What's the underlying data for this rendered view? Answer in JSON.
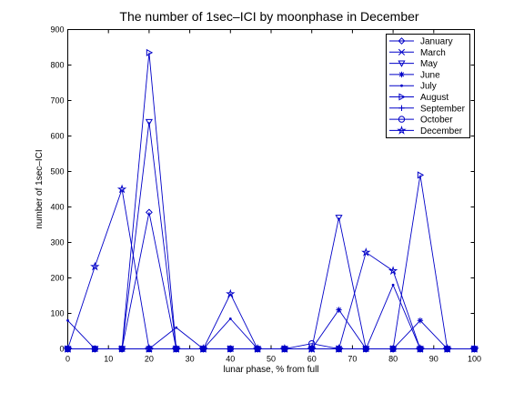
{
  "chart_data": {
    "type": "line",
    "title": "The number of 1sec–ICI by moonphase in December",
    "xlabel": "lunar phase, % from full",
    "ylabel": "number of 1sec–ICI",
    "xlim": [
      0,
      100
    ],
    "ylim": [
      0,
      900
    ],
    "xticks": [
      0,
      10,
      20,
      30,
      40,
      50,
      60,
      70,
      80,
      90,
      100
    ],
    "yticks": [
      0,
      100,
      200,
      300,
      400,
      500,
      600,
      700,
      800,
      900
    ],
    "grid": false,
    "legend_position": "top-right",
    "line_color": "#0000c8",
    "x": [
      0,
      6.67,
      13.33,
      20,
      26.67,
      33.33,
      40,
      46.67,
      53.33,
      60,
      66.67,
      73.33,
      80,
      86.67,
      93.33,
      100
    ],
    "series": [
      {
        "name": "January",
        "marker": "diamond",
        "values": [
          0,
          0,
          0,
          385,
          0,
          0,
          0,
          0,
          0,
          0,
          0,
          0,
          0,
          0,
          0,
          0
        ]
      },
      {
        "name": "March",
        "marker": "x",
        "values": [
          0,
          0,
          0,
          0,
          0,
          0,
          0,
          0,
          0,
          0,
          0,
          0,
          0,
          0,
          0,
          0
        ]
      },
      {
        "name": "May",
        "marker": "triangle-down",
        "values": [
          0,
          0,
          0,
          640,
          0,
          0,
          0,
          0,
          0,
          0,
          370,
          0,
          0,
          0,
          0,
          0
        ]
      },
      {
        "name": "June",
        "marker": "asterisk",
        "values": [
          0,
          0,
          0,
          0,
          0,
          0,
          0,
          0,
          0,
          0,
          110,
          0,
          0,
          80,
          0,
          0
        ]
      },
      {
        "name": "July",
        "marker": "dot",
        "values": [
          80,
          0,
          0,
          0,
          60,
          0,
          85,
          0,
          0,
          0,
          0,
          0,
          180,
          0,
          0,
          0
        ]
      },
      {
        "name": "August",
        "marker": "triangle-right",
        "values": [
          0,
          0,
          0,
          835,
          0,
          0,
          0,
          0,
          0,
          0,
          0,
          0,
          0,
          490,
          0,
          0
        ]
      },
      {
        "name": "September",
        "marker": "plus",
        "values": [
          0,
          0,
          0,
          0,
          0,
          0,
          0,
          0,
          0,
          0,
          0,
          0,
          0,
          0,
          0,
          0
        ]
      },
      {
        "name": "October",
        "marker": "circle",
        "values": [
          0,
          0,
          0,
          0,
          0,
          0,
          0,
          0,
          0,
          15,
          0,
          0,
          0,
          0,
          0,
          0
        ]
      },
      {
        "name": "December",
        "marker": "star",
        "values": [
          0,
          232,
          450,
          0,
          0,
          0,
          155,
          0,
          0,
          0,
          0,
          272,
          220,
          0,
          0,
          0
        ]
      }
    ]
  }
}
